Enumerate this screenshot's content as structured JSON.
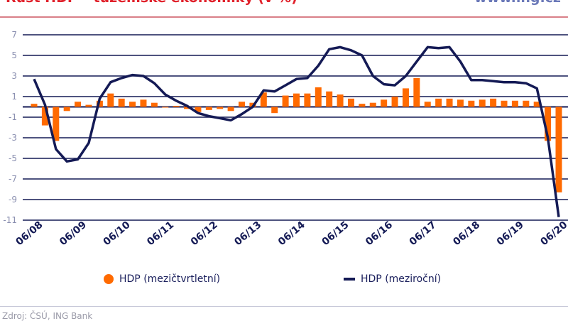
{
  "header": {
    "title": "Růst HDP – tuzemské ekonomiky (v %)",
    "url": "www.ing.cz"
  },
  "chart_data": {
    "type": "bar+line",
    "title": "Růst HDP – tuzemské ekonomiky (v %)",
    "ylim": [
      -11,
      7
    ],
    "yticks": [
      7,
      5,
      3,
      1,
      -1,
      -3,
      -5,
      -7,
      -9,
      -11
    ],
    "xtick_labels": [
      "06/08",
      "06/09",
      "06/10",
      "06/11",
      "06/12",
      "06/13",
      "06/14",
      "06/15",
      "06/16",
      "06/17",
      "06/18",
      "06/19",
      "06/20"
    ],
    "grid": true,
    "legend_placement": "bottom",
    "series": [
      {
        "name": "HDP (mezičtvrtletní)",
        "type": "bar",
        "color": "#ff6a00",
        "values": [
          0.3,
          -1.8,
          -3.3,
          -0.4,
          0.5,
          0.2,
          0.6,
          1.3,
          0.8,
          0.5,
          0.7,
          0.4,
          0.0,
          0.1,
          -0.2,
          -0.5,
          -0.3,
          -0.2,
          -0.4,
          0.5,
          0.4,
          1.4,
          -0.6,
          1.1,
          1.3,
          1.3,
          1.9,
          1.5,
          1.2,
          0.8,
          0.3,
          0.4,
          0.7,
          1.0,
          1.8,
          2.8,
          0.5,
          0.8,
          0.8,
          0.7,
          0.6,
          0.7,
          0.8,
          0.6,
          0.6,
          0.6,
          0.5,
          -3.3,
          -8.3
        ]
      },
      {
        "name": "HDP (meziroční)",
        "type": "line",
        "color": "#141a55",
        "values": [
          2.7,
          0.2,
          -4.1,
          -5.3,
          -5.1,
          -3.5,
          0.8,
          2.4,
          2.8,
          3.1,
          3.0,
          2.3,
          1.2,
          0.6,
          0.1,
          -0.6,
          -0.9,
          -1.1,
          -1.3,
          -0.7,
          0.0,
          1.6,
          1.5,
          2.1,
          2.7,
          2.8,
          4.0,
          5.6,
          5.8,
          5.5,
          5.0,
          3.0,
          2.2,
          2.1,
          3.0,
          4.4,
          5.8,
          5.7,
          5.8,
          4.4,
          2.6,
          2.6,
          2.5,
          2.4,
          2.4,
          2.3,
          1.8,
          -3.0,
          -10.7
        ]
      }
    ]
  },
  "legend": {
    "bar_label": "HDP (mezičtvrtletní)",
    "line_label": "HDP (meziroční)"
  },
  "footer": {
    "source": "Zdroj: ČSÚ, ING Bank"
  }
}
